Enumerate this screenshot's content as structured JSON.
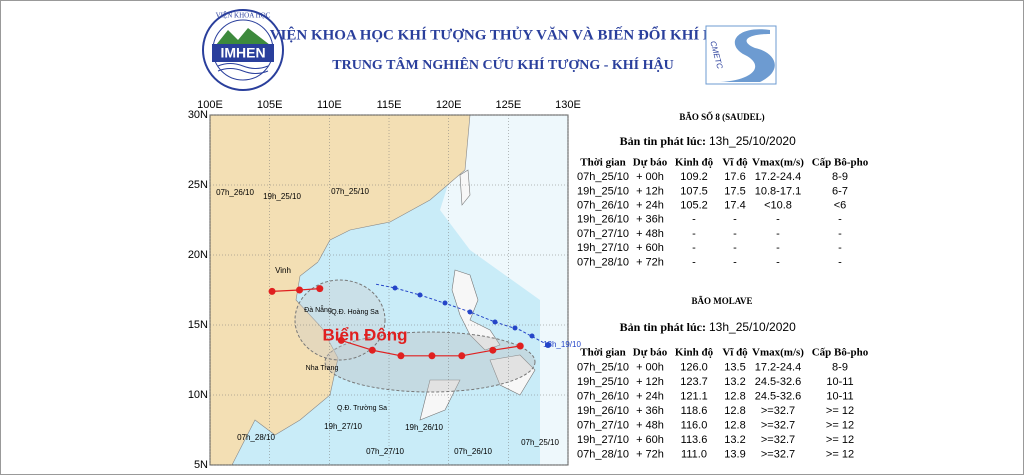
{
  "header": {
    "logo_top": "VIỆN KHOA HỌC",
    "logo_name": "IMHEN",
    "title": "VIỆN KHOA HỌC KHÍ TƯỢNG THỦY VĂN VÀ BIẾN ĐỔI KHÍ HẬU",
    "subtitle": "TRUNG TÂM NGHIÊN CỨU KHÍ TƯỢNG - KHÍ HẬU",
    "partner_logo": "CMETC"
  },
  "map": {
    "xticks": [
      {
        "value": 100,
        "label": "100E"
      },
      {
        "value": 105,
        "label": "105E"
      },
      {
        "value": 110,
        "label": "110E"
      },
      {
        "value": 115,
        "label": "115E"
      },
      {
        "value": 120,
        "label": "120E"
      },
      {
        "value": 125,
        "label": "125E"
      },
      {
        "value": 130,
        "label": "130E"
      }
    ],
    "yticks": [
      {
        "value": 30,
        "label": "30N"
      },
      {
        "value": 25,
        "label": "25N"
      },
      {
        "value": 20,
        "label": "20N"
      },
      {
        "value": 15,
        "label": "15N"
      },
      {
        "value": 10,
        "label": "10N"
      },
      {
        "value": 5,
        "label": "5N"
      }
    ],
    "labels": [
      "07h_26/10",
      "19h_25/10",
      "07h_25/10",
      "Vinh",
      "Đà Nẵng",
      "Q.Đ. Hoàng Sa",
      "Biển Đông",
      "Nha Trang",
      "Q.Đ. Trường Sa",
      "19h_27/10",
      "07h_28/10",
      "07h_27/10",
      "19h_26/10",
      "07h_26/10",
      "07h_25/10",
      "13h_19/10"
    ]
  },
  "tables": [
    {
      "title": "BÃO SỐ 8 (SAUDEL)",
      "issued_label": "Bản tin phát lúc:",
      "issued": "13h_25/10/2020",
      "columns": [
        "Thời gian",
        "Dự báo",
        "Kinh độ",
        "Vĩ độ",
        "Vmax(m/s)",
        "Cấp Bô-pho"
      ],
      "rows": [
        [
          "07h_25/10",
          "+ 00h",
          "109.2",
          "17.6",
          "17.2-24.4",
          "8-9"
        ],
        [
          "19h_25/10",
          "+ 12h",
          "107.5",
          "17.5",
          "10.8-17.1",
          "6-7"
        ],
        [
          "07h_26/10",
          "+ 24h",
          "105.2",
          "17.4",
          "<10.8",
          "<6"
        ],
        [
          "19h_26/10",
          "+ 36h",
          "-",
          "-",
          "-",
          "-"
        ],
        [
          "07h_27/10",
          "+ 48h",
          "-",
          "-",
          "-",
          "-"
        ],
        [
          "19h_27/10",
          "+ 60h",
          "-",
          "-",
          "-",
          "-"
        ],
        [
          "07h_28/10",
          "+ 72h",
          "-",
          "-",
          "-",
          "-"
        ]
      ]
    },
    {
      "title": "BÃO MOLAVE",
      "issued_label": "Bản tin phát lúc:",
      "issued": "13h_25/10/2020",
      "columns": [
        "Thời gian",
        "Dự báo",
        "Kinh độ",
        "Vĩ độ",
        "Vmax(m/s)",
        "Cấp Bô-pho"
      ],
      "rows": [
        [
          "07h_25/10",
          "+ 00h",
          "126.0",
          "13.5",
          "17.2-24.4",
          "8-9"
        ],
        [
          "19h_25/10",
          "+ 12h",
          "123.7",
          "13.2",
          "24.5-32.6",
          "10-11"
        ],
        [
          "07h_26/10",
          "+ 24h",
          "121.1",
          "12.8",
          "24.5-32.6",
          "10-11"
        ],
        [
          "19h_26/10",
          "+ 36h",
          "118.6",
          "12.8",
          ">=32.7",
          ">= 12"
        ],
        [
          "07h_27/10",
          "+ 48h",
          "116.0",
          "12.8",
          ">=32.7",
          ">= 12"
        ],
        [
          "19h_27/10",
          "+ 60h",
          "113.6",
          "13.2",
          ">=32.7",
          ">= 12"
        ],
        [
          "07h_28/10",
          "+ 72h",
          "111.0",
          "13.9",
          ">=32.7",
          ">= 12"
        ]
      ]
    }
  ]
}
